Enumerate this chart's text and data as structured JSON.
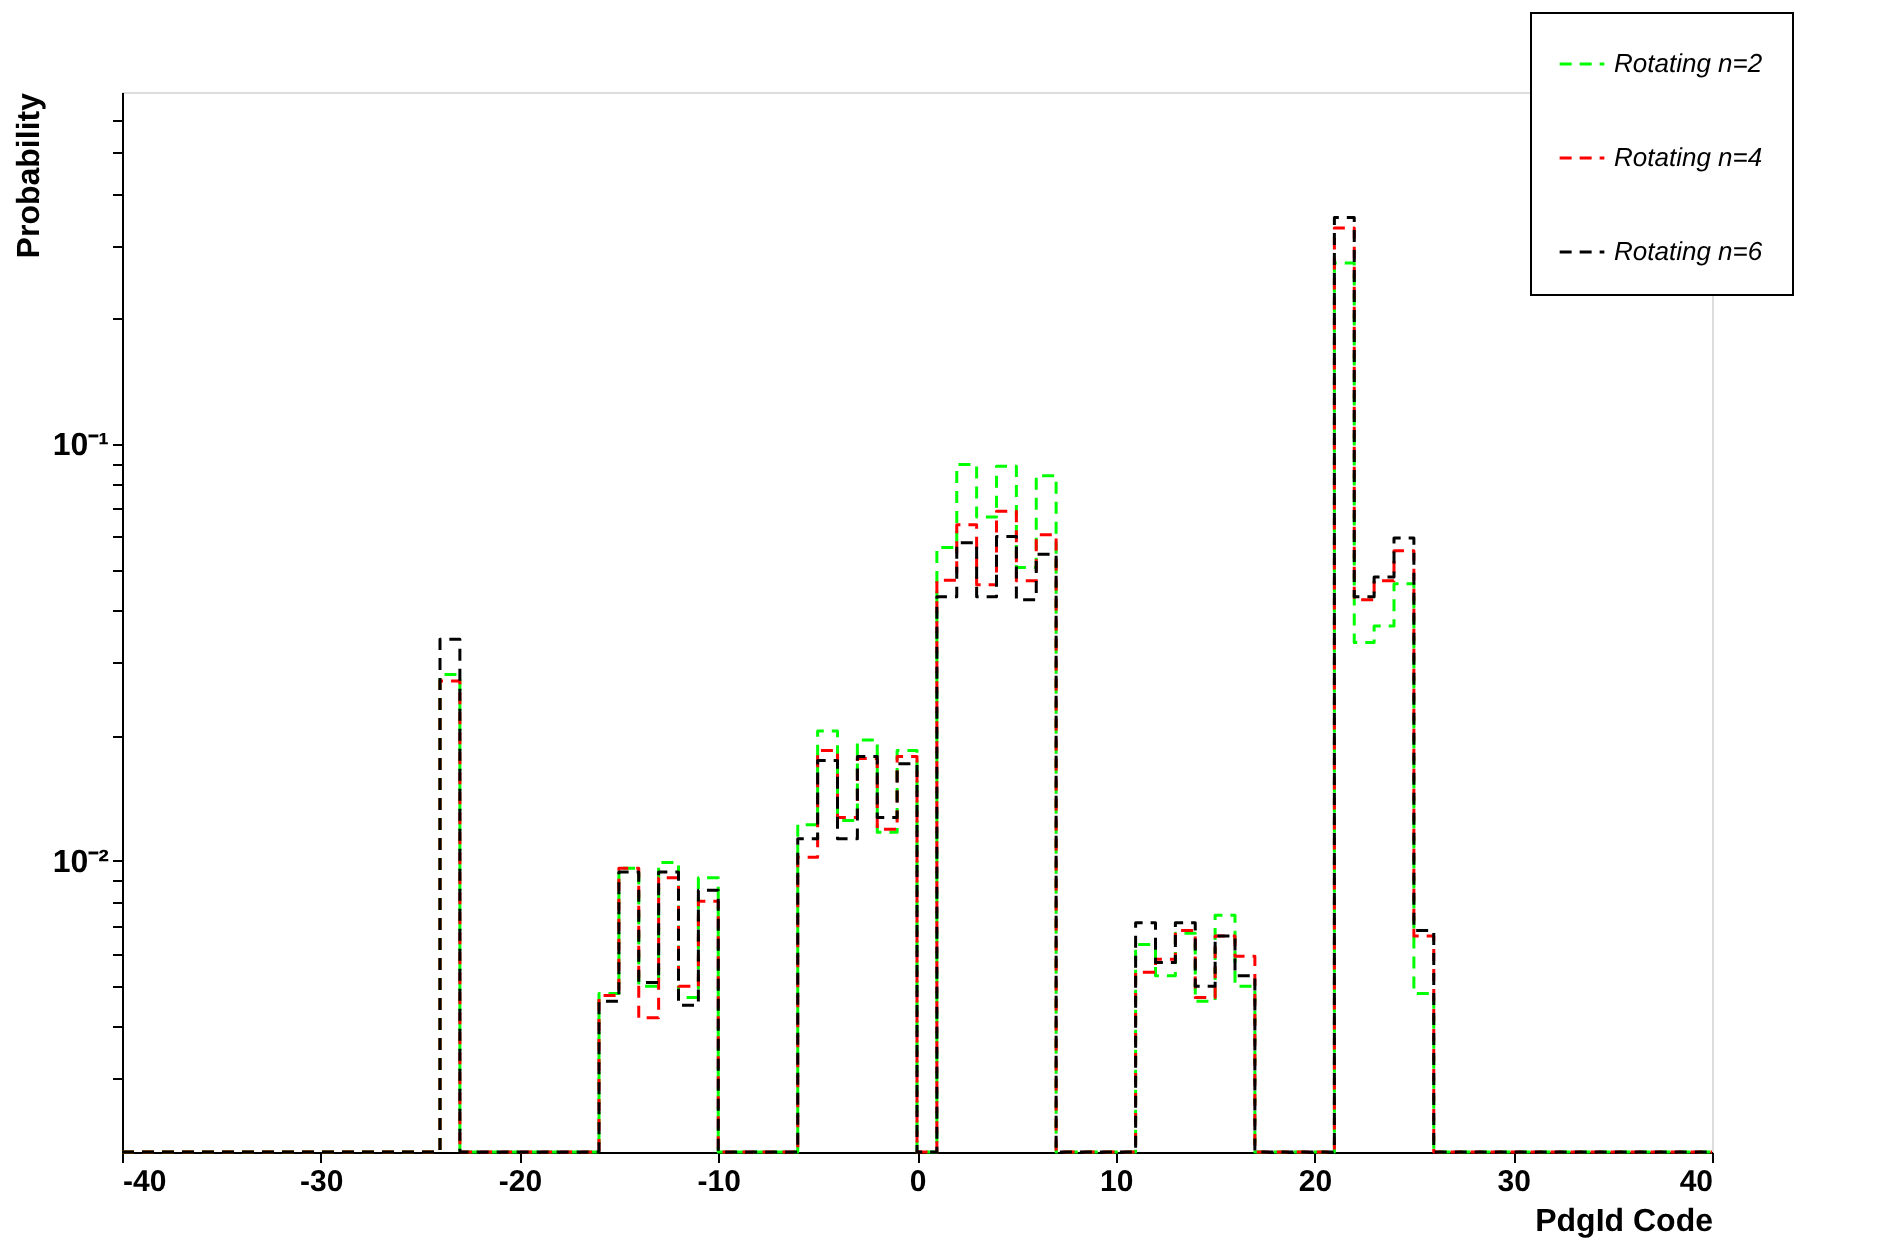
{
  "chart_data": {
    "type": "histogram",
    "xlabel": "PdgId Code",
    "ylabel": "Probability",
    "bins": [
      -40,
      -39,
      -38,
      -37,
      -36,
      -35,
      -34,
      -33,
      -32,
      -31,
      -30,
      -29,
      -28,
      -27,
      -26,
      -25,
      -24,
      -23,
      -22,
      -21,
      -20,
      -19,
      -18,
      -17,
      -16,
      -15,
      -14,
      -13,
      -12,
      -11,
      -10,
      -9,
      -8,
      -7,
      -6,
      -5,
      -4,
      -3,
      -2,
      -1,
      0,
      1,
      2,
      3,
      4,
      5,
      6,
      7,
      8,
      9,
      10,
      11,
      12,
      13,
      14,
      15,
      16,
      17,
      18,
      19,
      20,
      21,
      22,
      23,
      24,
      25,
      26,
      27,
      28,
      29,
      30,
      31,
      32,
      33,
      34,
      35,
      36,
      37,
      38,
      39,
      40
    ],
    "series": [
      {
        "name": "Rotating n=2",
        "color": "#00ff00",
        "values": [
          null,
          null,
          null,
          null,
          null,
          null,
          null,
          null,
          null,
          null,
          null,
          null,
          null,
          null,
          null,
          null,
          0.028,
          null,
          null,
          null,
          null,
          null,
          null,
          null,
          0.0048,
          0.0096,
          0.005,
          0.0099,
          0.0047,
          0.0091,
          null,
          null,
          null,
          null,
          0.0122,
          0.0205,
          0.0125,
          0.0195,
          0.0117,
          0.0184,
          null,
          0.0565,
          0.0893,
          0.0668,
          0.0885,
          0.0506,
          0.084,
          null,
          null,
          null,
          null,
          0.0063,
          0.0053,
          0.0067,
          0.0046,
          0.0074,
          0.005,
          null,
          null,
          null,
          null,
          0.272,
          0.0334,
          0.0366,
          0.0462,
          0.0048,
          null,
          null,
          null,
          null,
          null,
          null,
          null,
          null,
          null,
          null,
          null,
          null,
          null,
          null
        ]
      },
      {
        "name": "Rotating n=4",
        "color": "#ff0000",
        "values": [
          null,
          null,
          null,
          null,
          null,
          null,
          null,
          null,
          null,
          null,
          null,
          null,
          null,
          null,
          null,
          null,
          0.027,
          null,
          null,
          null,
          null,
          null,
          null,
          null,
          0.00475,
          0.0096,
          0.0042,
          0.0091,
          0.005,
          0.008,
          null,
          null,
          null,
          null,
          0.0102,
          0.0184,
          0.0127,
          0.0176,
          0.0119,
          0.0178,
          null,
          0.0471,
          0.064,
          0.046,
          0.069,
          0.047,
          0.0606,
          null,
          null,
          null,
          null,
          0.0054,
          0.0058,
          0.0068,
          0.0047,
          0.0066,
          0.0059,
          null,
          null,
          null,
          null,
          0.33,
          0.0423,
          0.047,
          0.0555,
          0.0066,
          null,
          null,
          null,
          null,
          null,
          null,
          null,
          null,
          null,
          null,
          null,
          null,
          null,
          null
        ]
      },
      {
        "name": "Rotating n=6",
        "color": "#000000",
        "values": [
          null,
          null,
          null,
          null,
          null,
          null,
          null,
          null,
          null,
          null,
          null,
          null,
          null,
          null,
          null,
          null,
          0.034,
          null,
          null,
          null,
          null,
          null,
          null,
          null,
          0.0046,
          0.0094,
          0.0051,
          0.0094,
          0.0045,
          0.0085,
          null,
          null,
          null,
          null,
          0.0113,
          0.0174,
          0.0113,
          0.0178,
          0.0127,
          0.0171,
          null,
          0.043,
          0.058,
          0.043,
          0.06,
          0.0423,
          0.0544,
          null,
          null,
          null,
          null,
          0.0071,
          0.0057,
          0.0071,
          0.005,
          0.0066,
          0.0053,
          null,
          null,
          null,
          null,
          0.35,
          0.043,
          0.048,
          0.0595,
          0.0068,
          null,
          null,
          null,
          null,
          null,
          null,
          null,
          null,
          null,
          null,
          null,
          null,
          null,
          null
        ]
      }
    ],
    "xlim": [
      -40,
      40
    ],
    "xticks": [
      -40,
      -30,
      -20,
      -10,
      0,
      10,
      20,
      30,
      40
    ],
    "ylim": [
      0.002,
      0.7
    ],
    "log": "y",
    "yticks": [
      {
        "value": 0.003,
        "label": null
      },
      {
        "value": 0.004,
        "label": null
      },
      {
        "value": 0.005,
        "label": null
      },
      {
        "value": 0.006,
        "label": null
      },
      {
        "value": 0.007,
        "label": null
      },
      {
        "value": 0.008,
        "label": null
      },
      {
        "value": 0.009,
        "label": null
      },
      {
        "value": 0.01,
        "label": "10⁻²"
      },
      {
        "value": 0.02,
        "label": null
      },
      {
        "value": 0.03,
        "label": null
      },
      {
        "value": 0.04,
        "label": null
      },
      {
        "value": 0.05,
        "label": null
      },
      {
        "value": 0.06,
        "label": null
      },
      {
        "value": 0.07,
        "label": null
      },
      {
        "value": 0.08,
        "label": null
      },
      {
        "value": 0.09,
        "label": null
      },
      {
        "value": 0.1,
        "label": "10⁻¹"
      },
      {
        "value": 0.2,
        "label": null
      },
      {
        "value": 0.3,
        "label": null
      },
      {
        "value": 0.4,
        "label": null
      },
      {
        "value": 0.5,
        "label": null
      },
      {
        "value": 0.6,
        "label": null
      }
    ],
    "grid": false,
    "legend": "top right",
    "line_style": "dashed"
  }
}
